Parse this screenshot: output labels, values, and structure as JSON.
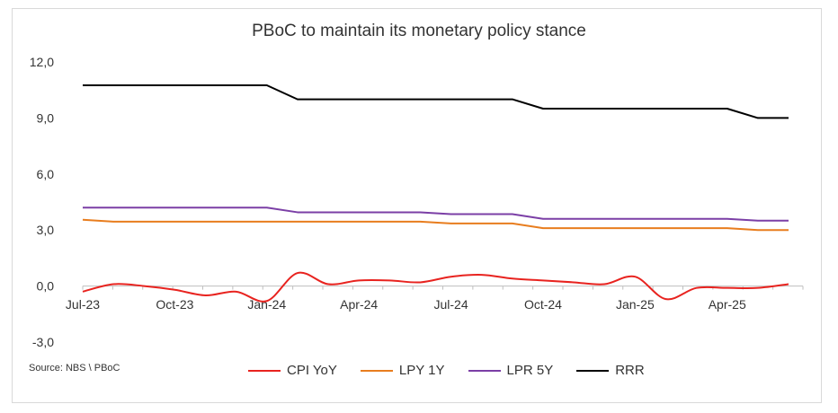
{
  "chart_data": {
    "type": "line",
    "title": "PBoC to maintain its monetary policy stance",
    "source": "Source: NBS \\ PBoC",
    "ylim": [
      -3,
      12
    ],
    "yticks": [
      "12,0",
      "9,0",
      "6,0",
      "3,0",
      "0,0",
      "-3,0"
    ],
    "ytick_values": [
      12,
      9,
      6,
      3,
      0,
      -3
    ],
    "x_tick_labels": [
      "Jul-23",
      "Oct-23",
      "Jan-24",
      "Apr-24",
      "Jul-24",
      "Oct-24",
      "Jan-25",
      "Apr-25"
    ],
    "x_tick_index": [
      0,
      3,
      6,
      9,
      12,
      15,
      18,
      21
    ],
    "x": [
      "Jul-23",
      "Aug-23",
      "Sep-23",
      "Oct-23",
      "Nov-23",
      "Dec-23",
      "Jan-24",
      "Feb-24",
      "Mar-24",
      "Apr-24",
      "May-24",
      "Jun-24",
      "Jul-24",
      "Aug-24",
      "Sep-24",
      "Oct-24",
      "Nov-24",
      "Dec-24",
      "Jan-25",
      "Feb-25",
      "Mar-25",
      "Apr-25",
      "May-25",
      "Jun-25"
    ],
    "grid": false,
    "legend_position": "bottom",
    "series": [
      {
        "name": "CPI YoY",
        "color": "#e8231f",
        "smooth": true,
        "values": [
          -0.3,
          0.1,
          0.0,
          -0.2,
          -0.5,
          -0.3,
          -0.8,
          0.7,
          0.1,
          0.3,
          0.3,
          0.2,
          0.5,
          0.6,
          0.4,
          0.3,
          0.2,
          0.1,
          0.5,
          -0.7,
          -0.1,
          -0.1,
          -0.1,
          0.1
        ]
      },
      {
        "name": "LPY 1Y",
        "color": "#e87d1e",
        "step": true,
        "values": [
          3.55,
          3.45,
          3.45,
          3.45,
          3.45,
          3.45,
          3.45,
          3.45,
          3.45,
          3.45,
          3.45,
          3.45,
          3.35,
          3.35,
          3.35,
          3.1,
          3.1,
          3.1,
          3.1,
          3.1,
          3.1,
          3.1,
          3.0,
          3.0
        ]
      },
      {
        "name": "LPR 5Y",
        "color": "#7b3fa6",
        "step": true,
        "values": [
          4.2,
          4.2,
          4.2,
          4.2,
          4.2,
          4.2,
          4.2,
          3.95,
          3.95,
          3.95,
          3.95,
          3.95,
          3.85,
          3.85,
          3.85,
          3.6,
          3.6,
          3.6,
          3.6,
          3.6,
          3.6,
          3.6,
          3.5,
          3.5
        ]
      },
      {
        "name": "RRR",
        "color": "#000000",
        "step": true,
        "values": [
          10.75,
          10.75,
          10.75,
          10.75,
          10.75,
          10.75,
          10.75,
          10.0,
          10.0,
          10.0,
          10.0,
          10.0,
          10.0,
          10.0,
          10.0,
          9.5,
          9.5,
          9.5,
          9.5,
          9.5,
          9.5,
          9.5,
          9.0,
          9.0
        ]
      }
    ]
  }
}
